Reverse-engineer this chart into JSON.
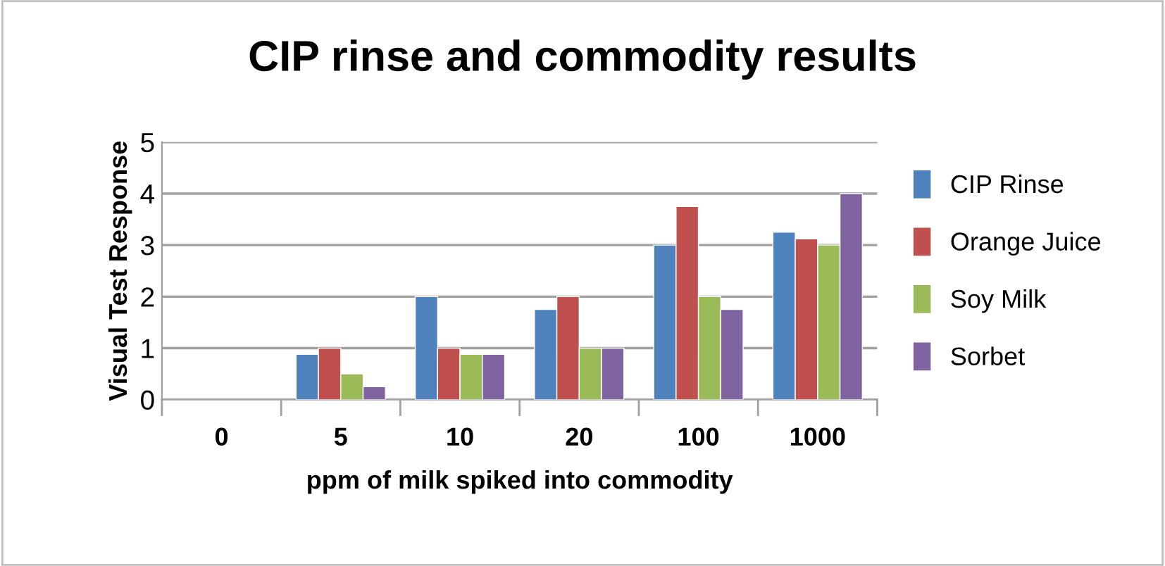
{
  "chart_data": {
    "type": "bar",
    "title": "CIP rinse and commodity results",
    "xlabel": "ppm of milk spiked into commodity",
    "ylabel": "Visual Test Response",
    "categories": [
      "0",
      "5",
      "10",
      "20",
      "100",
      "1000"
    ],
    "series": [
      {
        "name": "CIP Rinse",
        "color": "#4f81bd",
        "values": [
          null,
          0.88,
          2,
          1.75,
          3,
          3.25
        ]
      },
      {
        "name": "Orange Juice",
        "color": "#c0504d",
        "values": [
          null,
          1,
          1,
          2,
          3.75,
          3.12
        ]
      },
      {
        "name": "Soy Milk",
        "color": "#9bbb59",
        "values": [
          null,
          0.5,
          0.88,
          1,
          2,
          3
        ]
      },
      {
        "name": "Sorbet",
        "color": "#8064a2",
        "values": [
          null,
          0.25,
          0.88,
          1,
          1.75,
          4
        ]
      }
    ],
    "ylim": [
      0,
      5
    ],
    "yticks": [
      0,
      1,
      2,
      3,
      4,
      5
    ],
    "grid": "y",
    "legend": "right"
  }
}
